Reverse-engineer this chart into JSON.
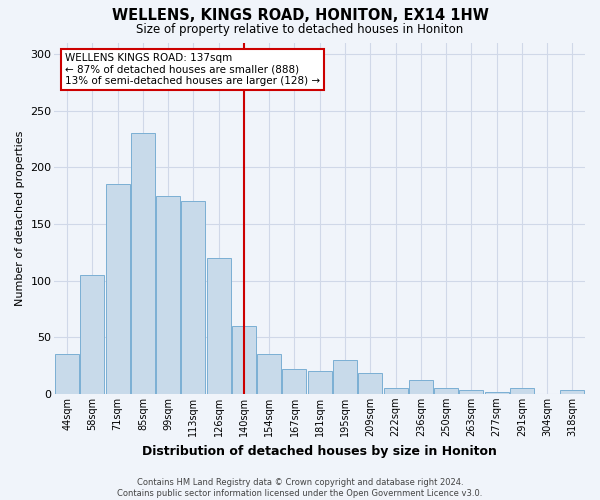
{
  "title": "WELLENS, KINGS ROAD, HONITON, EX14 1HW",
  "subtitle": "Size of property relative to detached houses in Honiton",
  "xlabel": "Distribution of detached houses by size in Honiton",
  "ylabel": "Number of detached properties",
  "categories": [
    "44sqm",
    "58sqm",
    "71sqm",
    "85sqm",
    "99sqm",
    "113sqm",
    "126sqm",
    "140sqm",
    "154sqm",
    "167sqm",
    "181sqm",
    "195sqm",
    "209sqm",
    "222sqm",
    "236sqm",
    "250sqm",
    "263sqm",
    "277sqm",
    "291sqm",
    "304sqm",
    "318sqm"
  ],
  "values": [
    35,
    105,
    185,
    230,
    175,
    170,
    120,
    60,
    35,
    22,
    20,
    30,
    18,
    5,
    12,
    5,
    3,
    2,
    5,
    0,
    3
  ],
  "bar_color": "#c8daea",
  "bar_edgecolor": "#7bafd4",
  "vline_x": 7,
  "vline_color": "#cc0000",
  "annotation_box_text": "WELLENS KINGS ROAD: 137sqm\n← 87% of detached houses are smaller (888)\n13% of semi-detached houses are larger (128) →",
  "annotation_box_color": "#ffffff",
  "annotation_box_edgecolor": "#cc0000",
  "ylim": [
    0,
    310
  ],
  "yticks": [
    0,
    50,
    100,
    150,
    200,
    250,
    300
  ],
  "footer": "Contains HM Land Registry data © Crown copyright and database right 2024.\nContains public sector information licensed under the Open Government Licence v3.0.",
  "bg_color": "#f0f4fa",
  "grid_color": "#d0d8e8"
}
